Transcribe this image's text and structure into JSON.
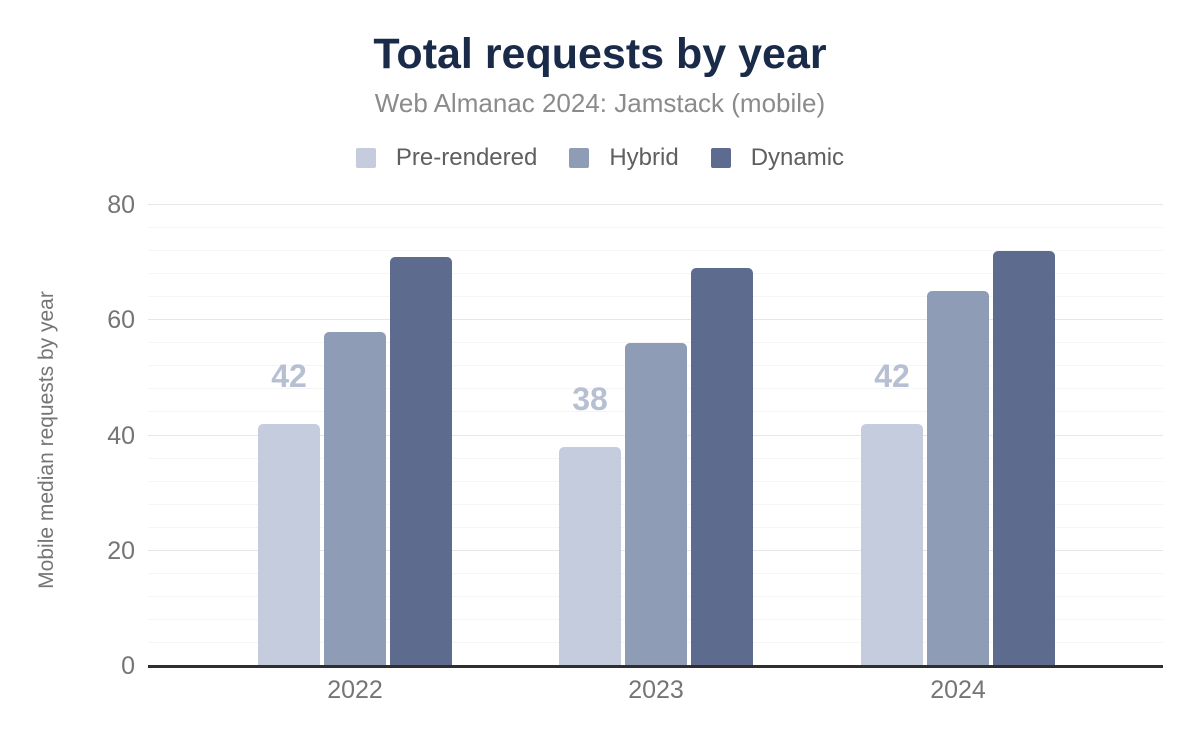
{
  "title": "Total requests by year",
  "subtitle": "Web Almanac 2024: Jamstack (mobile)",
  "chart_data": {
    "type": "bar",
    "title": "Total requests by year",
    "subtitle": "Web Almanac 2024: Jamstack (mobile)",
    "categories": [
      "2022",
      "2023",
      "2024"
    ],
    "series": [
      {
        "name": "Pre-rendered",
        "color": "#c4ccdd",
        "values": [
          42,
          38,
          42
        ],
        "annotations": [
          "42",
          "38",
          "42"
        ]
      },
      {
        "name": "Hybrid",
        "color": "#8f9cb5",
        "values": [
          58,
          56,
          65
        ],
        "annotations": []
      },
      {
        "name": "Dynamic",
        "color": "#5d6c8e",
        "values": [
          71,
          69,
          72
        ],
        "annotations": []
      }
    ],
    "xlabel": "",
    "ylabel": "Mobile median requests by year",
    "ylim": [
      0,
      80
    ],
    "yticks": [
      0,
      20,
      40,
      60,
      80
    ],
    "minor_gridline_step": 4,
    "grid": true,
    "legend_position": "top"
  },
  "colors": {
    "title_text": "#1a2b49",
    "subtitle_text": "#8b8b8b",
    "legend_text": "#5f5f5f",
    "tick_text": "#757575",
    "axis_line": "#2f2f2f",
    "major_gridline": "#e7e7e9",
    "minor_gridline": "#f5f5f6",
    "annotation_text": "#b7c0d3",
    "background": "#ffffff"
  }
}
